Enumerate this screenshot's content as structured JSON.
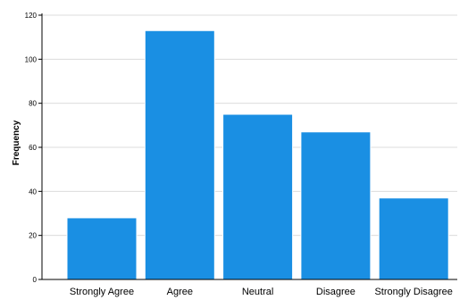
{
  "chart_data": {
    "type": "bar",
    "categories": [
      "Strongly Agree",
      "Agree",
      "Neutral",
      "Disagree",
      "Strongly Disagree"
    ],
    "values": [
      28,
      113,
      75,
      67,
      37
    ],
    "ylabel": "Frequency",
    "xlabel": "",
    "ylim": [
      0,
      120
    ],
    "yticks": [
      0,
      20,
      40,
      60,
      80,
      100,
      120
    ],
    "grid": true,
    "bar_color": "#1a8fe3",
    "bar_edge_color": "#ffffff"
  }
}
